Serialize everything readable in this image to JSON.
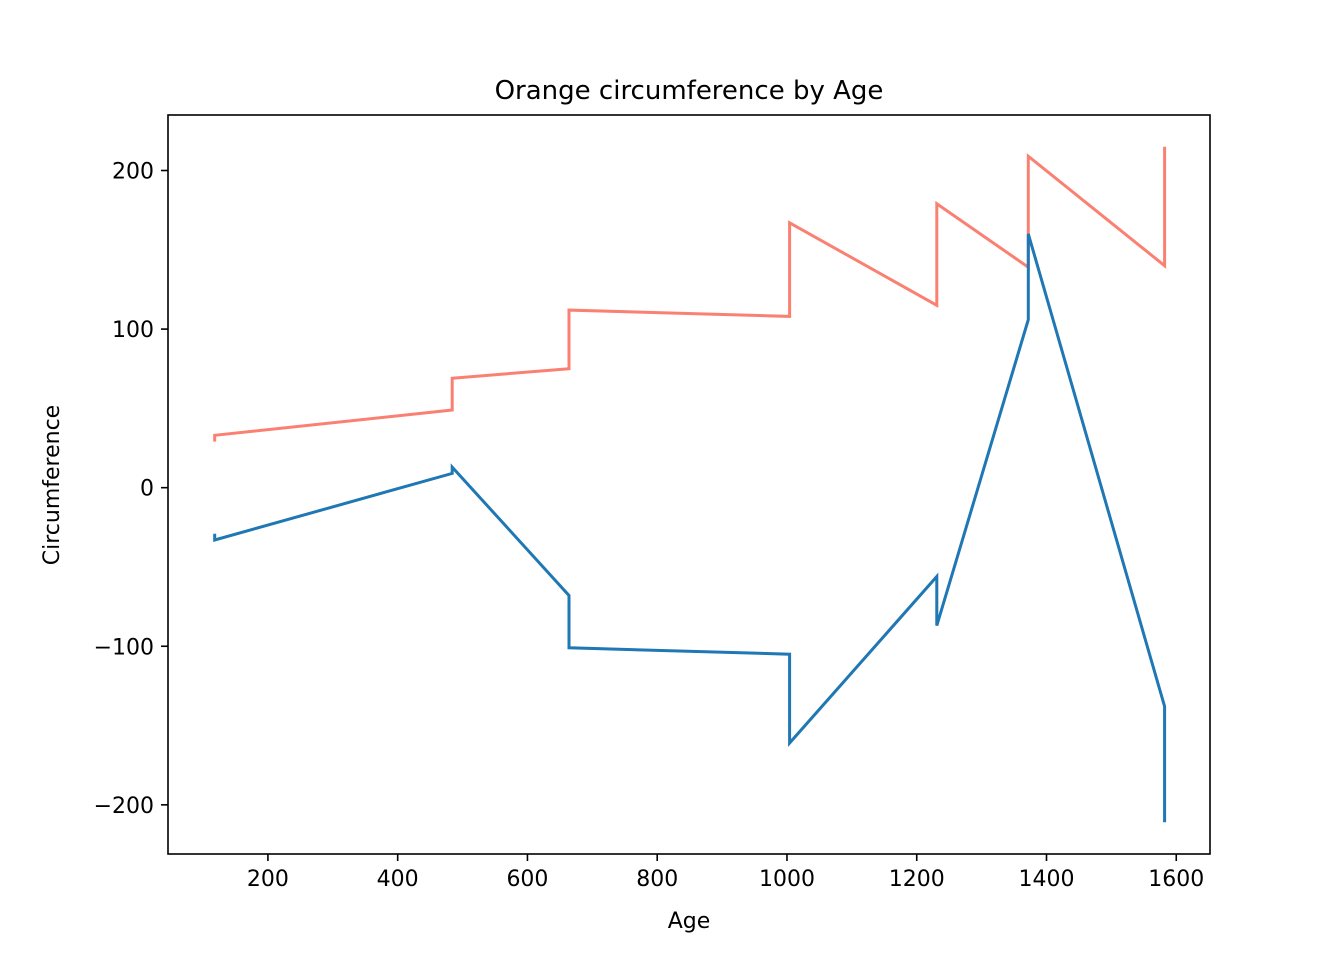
{
  "chart_data": {
    "type": "line",
    "title": "Orange circumference by Age",
    "xlabel": "Age",
    "ylabel": "Circumference",
    "xlim": [
      46,
      1652
    ],
    "ylim": [
      -231,
      235
    ],
    "xticks": [
      200,
      400,
      600,
      800,
      1000,
      1200,
      1400,
      1600
    ],
    "xtick_labels": [
      "200",
      "400",
      "600",
      "800",
      "1000",
      "1200",
      "1400",
      "1600"
    ],
    "yticks": [
      -200,
      -100,
      0,
      100,
      200
    ],
    "ytick_labels": [
      "−200",
      "−100",
      "0",
      "100",
      "200"
    ],
    "grid": false,
    "legend": "none",
    "series": [
      {
        "color": "#fa8072",
        "points": [
          [
            118,
            30
          ],
          [
            118,
            33
          ],
          [
            484,
            49
          ],
          [
            484,
            69
          ],
          [
            664,
            75
          ],
          [
            664,
            112
          ],
          [
            1004,
            108
          ],
          [
            1004,
            167
          ],
          [
            1231,
            115
          ],
          [
            1231,
            179
          ],
          [
            1372,
            139
          ],
          [
            1372,
            209
          ],
          [
            1582,
            140
          ],
          [
            1582,
            214
          ]
        ]
      },
      {
        "color": "#1f77b4",
        "points": [
          [
            118,
            -30
          ],
          [
            118,
            -33
          ],
          [
            484,
            9
          ],
          [
            484,
            13
          ],
          [
            664,
            -68
          ],
          [
            664,
            -101
          ],
          [
            1004,
            -105
          ],
          [
            1004,
            -161
          ],
          [
            1231,
            -56
          ],
          [
            1231,
            -87
          ],
          [
            1372,
            106
          ],
          [
            1372,
            160
          ],
          [
            1582,
            -138
          ],
          [
            1582,
            -210
          ]
        ]
      }
    ]
  }
}
